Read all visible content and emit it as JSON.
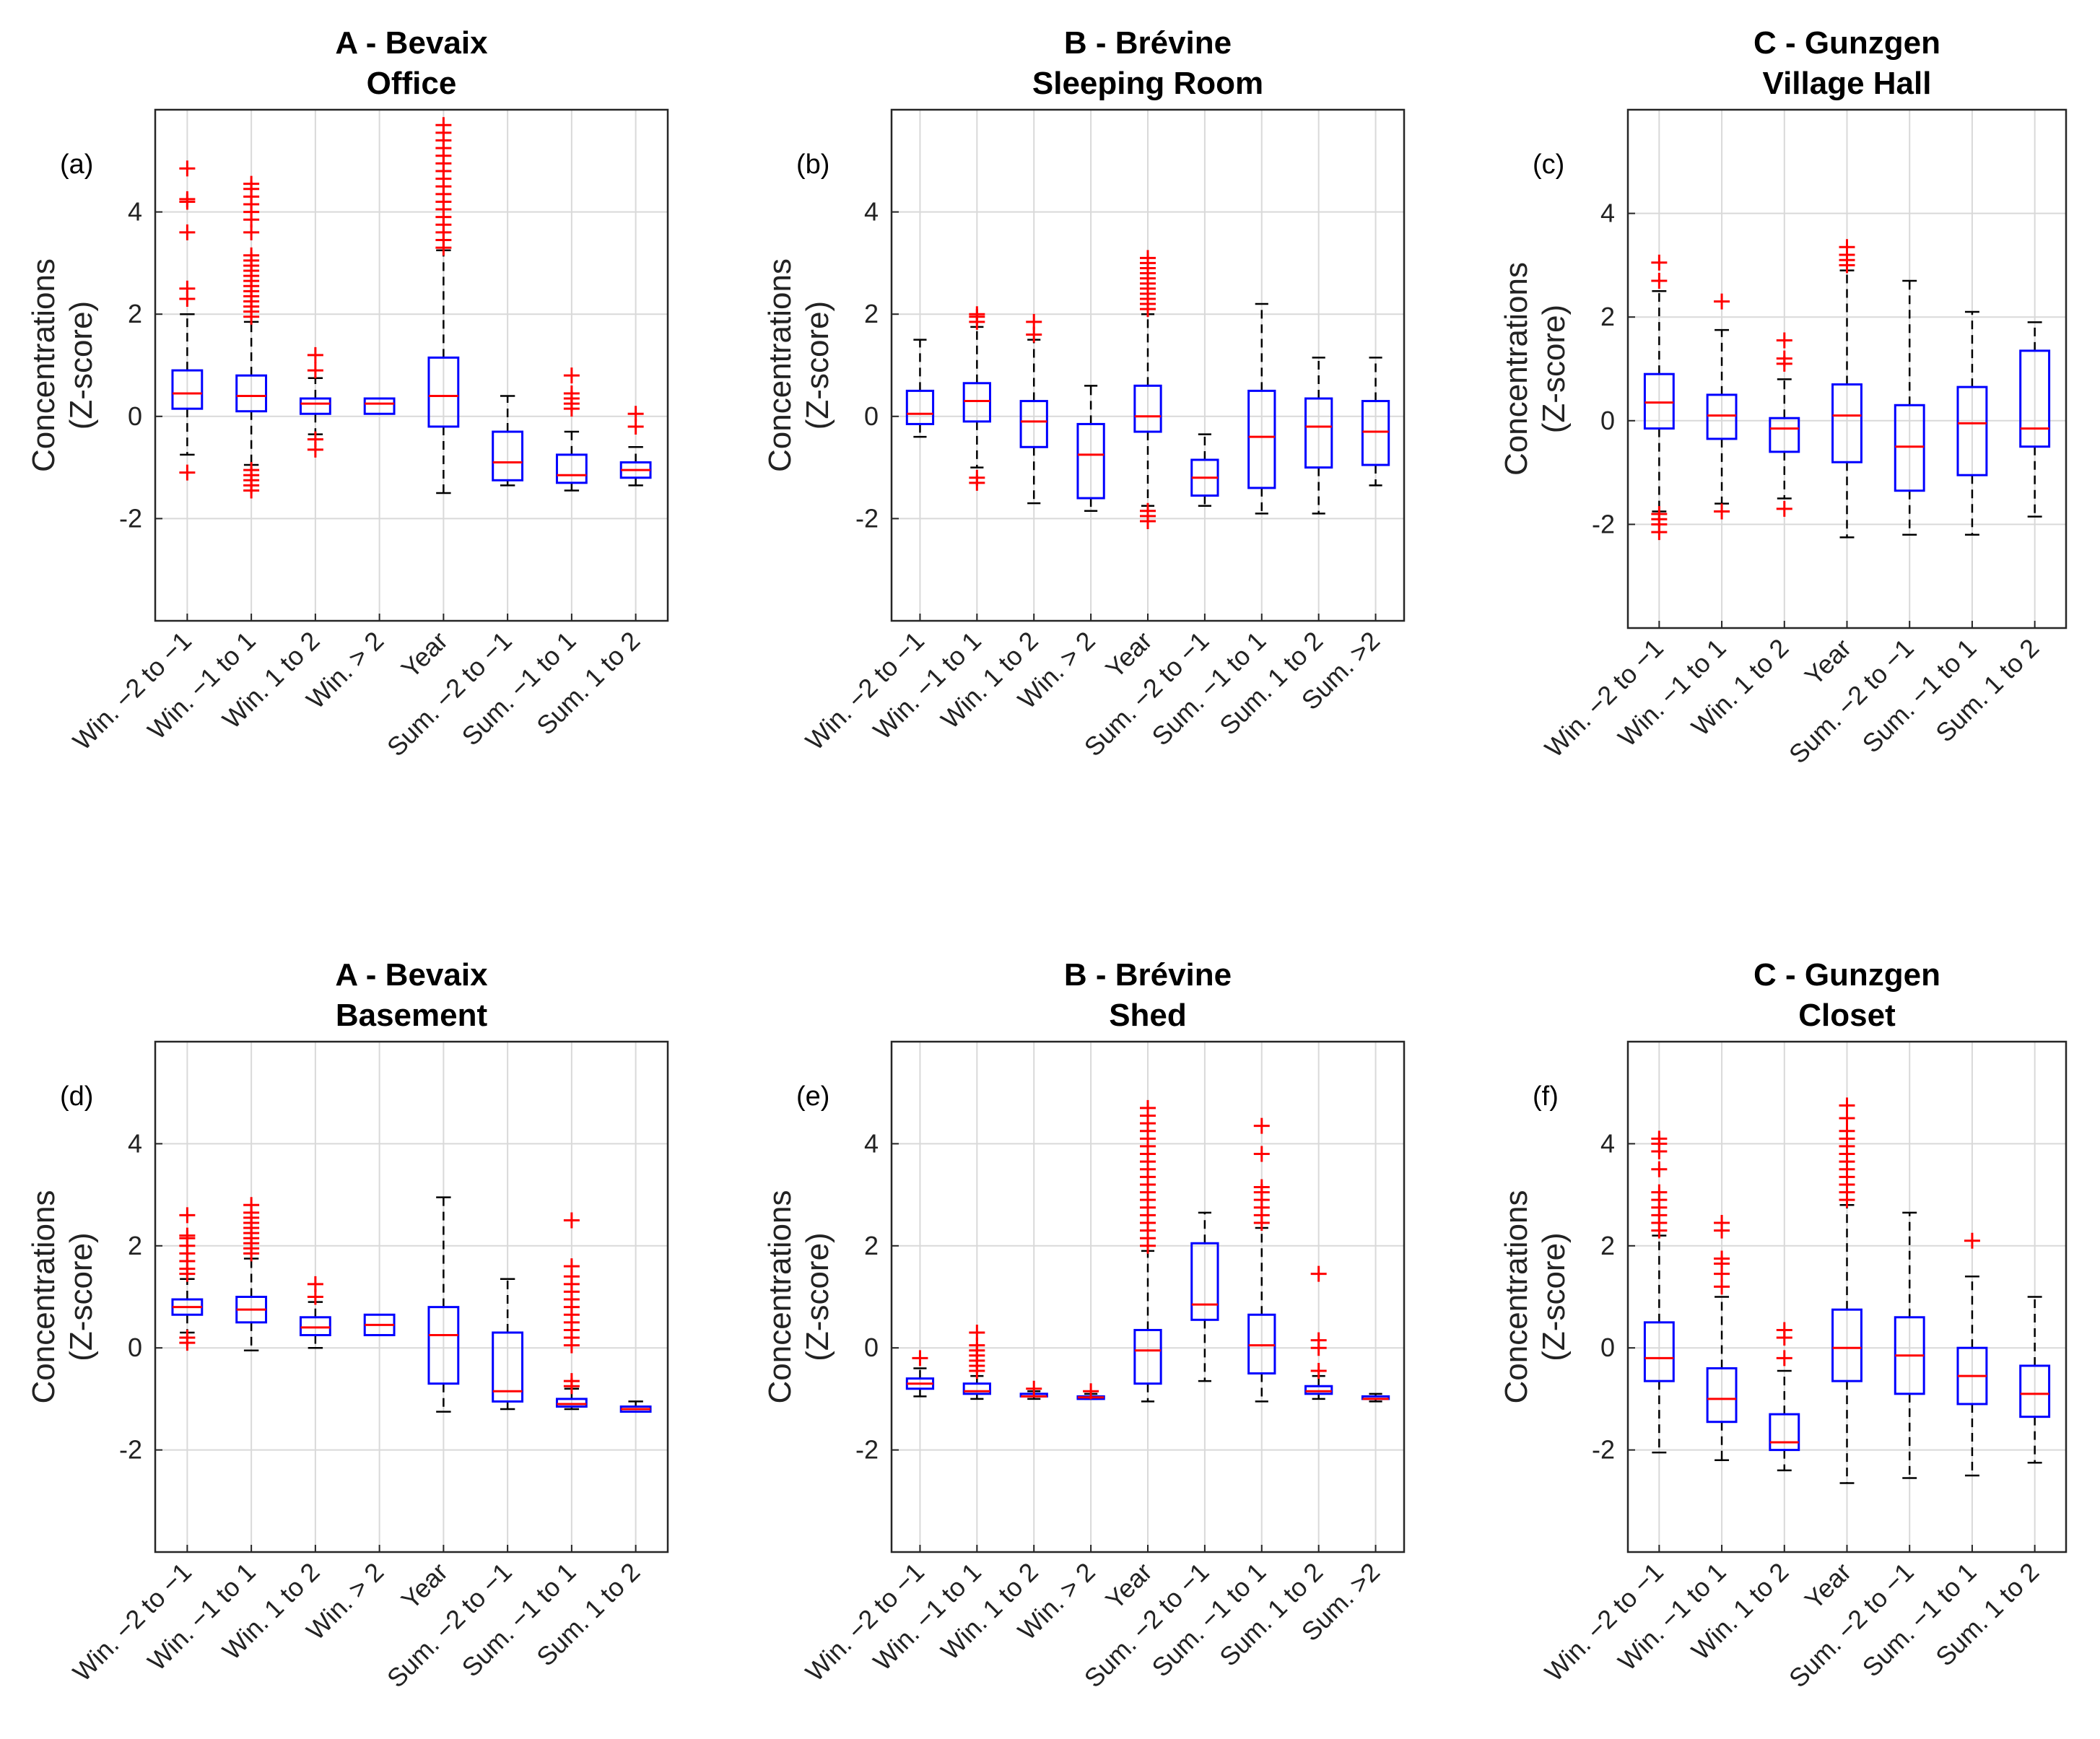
{
  "figure": {
    "style": "box plots of concentrations (Z-score) by class"
  },
  "colors": {
    "box": "#0000ff",
    "median": "#ff0000",
    "outlier": "#ff0000",
    "whisker": "#000000",
    "grid": "#d9d9d9",
    "axis": "#262626"
  },
  "chart_data": [
    {
      "type": "box",
      "panel": "(a)",
      "title": "A - Bevaix",
      "subtitle": "Office",
      "ylabel": "Concentrations",
      "ylabel2": "(Z-score)",
      "ylim": [
        -4,
        6
      ],
      "yticks": [
        -2,
        0,
        2,
        4
      ],
      "categories": [
        "Win. −2 to −1",
        "Win. −1 to 1",
        "Win. 1 to 2",
        "Win. > 2",
        "Year",
        "Sum. −2 to −1",
        "Sum. −1 to 1",
        "Sum. 1 to 2"
      ],
      "boxes": [
        {
          "wlo": -0.75,
          "q1": 0.15,
          "med": 0.45,
          "q3": 0.9,
          "whi": 2.0,
          "outliers": [
            -1.1,
            2.3,
            2.5,
            3.6,
            4.2,
            4.25,
            4.85
          ]
        },
        {
          "wlo": -0.95,
          "q1": 0.1,
          "med": 0.4,
          "q3": 0.8,
          "whi": 1.85,
          "outliers": [
            -1.45,
            -1.35,
            -1.25,
            -1.15,
            -1.05,
            1.95,
            2.05,
            2.15,
            2.25,
            2.35,
            2.45,
            2.55,
            2.65,
            2.75,
            2.85,
            2.95,
            3.05,
            3.15,
            3.6,
            3.85,
            4.0,
            4.15,
            4.3,
            4.45,
            4.55
          ]
        },
        {
          "wlo": -0.35,
          "q1": 0.05,
          "med": 0.25,
          "q3": 0.35,
          "whi": 0.75,
          "outliers": [
            -0.65,
            -0.45,
            0.9,
            1.2
          ]
        },
        {
          "wlo": 0.05,
          "q1": 0.05,
          "med": 0.25,
          "q3": 0.35,
          "whi": 0.35,
          "outliers": []
        },
        {
          "wlo": -1.5,
          "q1": -0.2,
          "med": 0.4,
          "q3": 1.15,
          "whi": 3.25,
          "outliers": [
            3.3,
            3.45,
            3.6,
            3.75,
            3.9,
            4.05,
            4.2,
            4.35,
            4.5,
            4.65,
            4.8,
            4.95,
            5.1,
            5.25,
            5.4,
            5.55,
            5.7
          ]
        },
        {
          "wlo": -1.35,
          "q1": -1.25,
          "med": -0.9,
          "q3": -0.3,
          "whi": 0.4,
          "outliers": []
        },
        {
          "wlo": -1.45,
          "q1": -1.3,
          "med": -1.15,
          "q3": -0.75,
          "whi": -0.3,
          "outliers": [
            0.15,
            0.25,
            0.35,
            0.45,
            0.8
          ]
        },
        {
          "wlo": -1.35,
          "q1": -1.2,
          "med": -1.05,
          "q3": -0.9,
          "whi": -0.6,
          "outliers": [
            -0.2,
            0.05
          ]
        }
      ]
    },
    {
      "type": "box",
      "panel": "(b)",
      "title": "B - Brévine",
      "subtitle": "Sleeping Room",
      "ylabel": "Concentrations",
      "ylabel2": "(Z-score)",
      "ylim": [
        -4,
        6
      ],
      "yticks": [
        -2,
        0,
        2,
        4
      ],
      "categories": [
        "Win. −2 to −1",
        "Win. −1 to 1",
        "Win. 1 to 2",
        "Win. > 2",
        "Year",
        "Sum. −2 to −1",
        "Sum. −1 to 1",
        "Sum. 1 to 2",
        "Sum. >2"
      ],
      "boxes": [
        {
          "wlo": -0.4,
          "q1": -0.15,
          "med": 0.05,
          "q3": 0.5,
          "whi": 1.5,
          "outliers": []
        },
        {
          "wlo": -1.0,
          "q1": -0.1,
          "med": 0.3,
          "q3": 0.65,
          "whi": 1.75,
          "outliers": [
            -1.3,
            -1.2,
            1.85,
            1.95,
            2.0
          ]
        },
        {
          "wlo": -1.7,
          "q1": -0.6,
          "med": -0.1,
          "q3": 0.3,
          "whi": 1.5,
          "outliers": [
            1.6,
            1.85
          ]
        },
        {
          "wlo": -1.85,
          "q1": -1.6,
          "med": -0.75,
          "q3": -0.15,
          "whi": 0.6,
          "outliers": []
        },
        {
          "wlo": -1.75,
          "q1": -0.3,
          "med": 0.0,
          "q3": 0.6,
          "whi": 2.0,
          "outliers": [
            -2.05,
            -1.95,
            -1.85,
            2.1,
            2.2,
            2.3,
            2.4,
            2.5,
            2.6,
            2.7,
            2.8,
            2.9,
            3.0,
            3.1
          ]
        },
        {
          "wlo": -1.75,
          "q1": -1.55,
          "med": -1.2,
          "q3": -0.85,
          "whi": -0.35,
          "outliers": []
        },
        {
          "wlo": -1.9,
          "q1": -1.4,
          "med": -0.4,
          "q3": 0.5,
          "whi": 2.2,
          "outliers": []
        },
        {
          "wlo": -1.9,
          "q1": -1.0,
          "med": -0.2,
          "q3": 0.35,
          "whi": 1.15,
          "outliers": []
        },
        {
          "wlo": -1.35,
          "q1": -0.95,
          "med": -0.3,
          "q3": 0.3,
          "whi": 1.15,
          "outliers": []
        }
      ]
    },
    {
      "type": "box",
      "panel": "(c)",
      "title": "C - Gunzgen",
      "subtitle": "Village Hall",
      "ylabel": "Concentrations",
      "ylabel2": "(Z-score)",
      "ylim": [
        -4,
        6
      ],
      "yticks": [
        -2,
        0,
        2,
        4
      ],
      "categories": [
        "Win. −2 to −1",
        "Win. −1 to 1",
        "Win. 1 to 2",
        "Year",
        "Sum. −2 to −1",
        "Sum. −1 to 1",
        "Sum. 1 to 2"
      ],
      "boxes": [
        {
          "wlo": -1.75,
          "q1": -0.15,
          "med": 0.35,
          "q3": 0.9,
          "whi": 2.5,
          "outliers": [
            -2.15,
            -2.0,
            -1.9,
            -1.8,
            2.7,
            3.05
          ]
        },
        {
          "wlo": -1.6,
          "q1": -0.35,
          "med": 0.1,
          "q3": 0.5,
          "whi": 1.75,
          "outliers": [
            -1.75,
            2.3
          ]
        },
        {
          "wlo": -1.5,
          "q1": -0.6,
          "med": -0.15,
          "q3": 0.05,
          "whi": 0.8,
          "outliers": [
            -1.7,
            1.1,
            1.2,
            1.55
          ]
        },
        {
          "wlo": -2.25,
          "q1": -0.8,
          "med": 0.1,
          "q3": 0.7,
          "whi": 2.9,
          "outliers": [
            3.0,
            3.1,
            3.2,
            3.35
          ]
        },
        {
          "wlo": -2.2,
          "q1": -1.35,
          "med": -0.5,
          "q3": 0.3,
          "whi": 2.7,
          "outliers": []
        },
        {
          "wlo": -2.2,
          "q1": -1.05,
          "med": -0.05,
          "q3": 0.65,
          "whi": 2.1,
          "outliers": []
        },
        {
          "wlo": -1.85,
          "q1": -0.5,
          "med": -0.15,
          "q3": 1.35,
          "whi": 1.9,
          "outliers": []
        }
      ]
    },
    {
      "type": "box",
      "panel": "(d)",
      "title": "A - Bevaix",
      "subtitle": "Basement",
      "ylabel": "Concentrations",
      "ylabel2": "(Z-score)",
      "ylim": [
        -4,
        6
      ],
      "yticks": [
        -2,
        0,
        2,
        4
      ],
      "categories": [
        "Win. −2 to −1",
        "Win. −1 to 1",
        "Win. 1 to 2",
        "Win. > 2",
        "Year",
        "Sum. −2 to −1",
        "Sum. −1 to 1",
        "Sum. 1 to 2"
      ],
      "boxes": [
        {
          "wlo": 0.3,
          "q1": 0.65,
          "med": 0.8,
          "q3": 0.95,
          "whi": 1.35,
          "outliers": [
            0.1,
            0.2,
            1.45,
            1.55,
            1.7,
            1.85,
            2.0,
            2.15,
            2.2,
            2.6
          ]
        },
        {
          "wlo": -0.05,
          "q1": 0.5,
          "med": 0.75,
          "q3": 1.0,
          "whi": 1.75,
          "outliers": [
            1.85,
            1.95,
            2.05,
            2.15,
            2.25,
            2.35,
            2.45,
            2.55,
            2.65,
            2.8
          ]
        },
        {
          "wlo": 0.0,
          "q1": 0.25,
          "med": 0.4,
          "q3": 0.6,
          "whi": 0.9,
          "outliers": [
            1.0,
            1.25
          ]
        },
        {
          "wlo": 0.25,
          "q1": 0.25,
          "med": 0.45,
          "q3": 0.65,
          "whi": 0.65,
          "outliers": []
        },
        {
          "wlo": -1.25,
          "q1": -0.7,
          "med": 0.25,
          "q3": 0.8,
          "whi": 2.95,
          "outliers": []
        },
        {
          "wlo": -1.2,
          "q1": -1.05,
          "med": -0.85,
          "q3": 0.3,
          "whi": 1.35,
          "outliers": []
        },
        {
          "wlo": -1.2,
          "q1": -1.15,
          "med": -1.1,
          "q3": -1.0,
          "whi": -0.8,
          "outliers": [
            -0.75,
            -0.65,
            0.05,
            0.2,
            0.35,
            0.5,
            0.65,
            0.8,
            0.95,
            1.1,
            1.25,
            1.4,
            1.6,
            2.5
          ]
        },
        {
          "wlo": -1.25,
          "q1": -1.25,
          "med": -1.2,
          "q3": -1.15,
          "whi": -1.05,
          "outliers": []
        }
      ]
    },
    {
      "type": "box",
      "panel": "(e)",
      "title": "B - Brévine",
      "subtitle": "Shed",
      "ylabel": "Concentrations",
      "ylabel2": "(Z-score)",
      "ylim": [
        -4,
        6
      ],
      "yticks": [
        -2,
        0,
        2,
        4
      ],
      "categories": [
        "Win. −2 to −1",
        "Win. −1 to 1",
        "Win. 1 to 2",
        "Win. > 2",
        "Year",
        "Sum. −2 to −1",
        "Sum. −1 to 1",
        "Sum. 1 to 2",
        "Sum. >2"
      ],
      "boxes": [
        {
          "wlo": -0.95,
          "q1": -0.8,
          "med": -0.7,
          "q3": -0.6,
          "whi": -0.4,
          "outliers": [
            -0.2
          ]
        },
        {
          "wlo": -1.0,
          "q1": -0.9,
          "med": -0.85,
          "q3": -0.7,
          "whi": -0.55,
          "outliers": [
            -0.45,
            -0.35,
            -0.25,
            -0.15,
            -0.05,
            0.05,
            0.3
          ]
        },
        {
          "wlo": -1.0,
          "q1": -0.95,
          "med": -0.95,
          "q3": -0.9,
          "whi": -0.85,
          "outliers": [
            -0.8
          ]
        },
        {
          "wlo": -1.0,
          "q1": -1.0,
          "med": -0.97,
          "q3": -0.95,
          "whi": -0.9,
          "outliers": [
            -0.85
          ]
        },
        {
          "wlo": -1.05,
          "q1": -0.7,
          "med": -0.05,
          "q3": 0.35,
          "whi": 1.9,
          "outliers": [
            2.0,
            2.15,
            2.3,
            2.45,
            2.6,
            2.75,
            2.9,
            3.05,
            3.2,
            3.35,
            3.5,
            3.65,
            3.8,
            3.95,
            4.1,
            4.25,
            4.4,
            4.55,
            4.7
          ]
        },
        {
          "wlo": -0.65,
          "q1": 0.55,
          "med": 0.85,
          "q3": 2.05,
          "whi": 2.65,
          "outliers": []
        },
        {
          "wlo": -1.05,
          "q1": -0.5,
          "med": 0.05,
          "q3": 0.65,
          "whi": 2.35,
          "outliers": [
            2.45,
            2.6,
            2.75,
            2.9,
            3.05,
            3.15,
            3.8,
            4.35
          ]
        },
        {
          "wlo": -1.0,
          "q1": -0.9,
          "med": -0.85,
          "q3": -0.75,
          "whi": -0.55,
          "outliers": [
            -0.45,
            0.0,
            0.15,
            1.45
          ]
        },
        {
          "wlo": -1.05,
          "q1": -1.0,
          "med": -1.0,
          "q3": -0.95,
          "whi": -0.9,
          "outliers": []
        }
      ]
    },
    {
      "type": "box",
      "panel": "(f)",
      "title": "C - Gunzgen",
      "subtitle": "Closet",
      "ylabel": "Concentrations",
      "ylabel2": "(Z-score)",
      "ylim": [
        -4,
        6
      ],
      "yticks": [
        -2,
        0,
        2,
        4
      ],
      "categories": [
        "Win. −2 to −1",
        "Win. −1 to 1",
        "Win. 1 to 2",
        "Year",
        "Sum. −2 to −1",
        "Sum. −1 to 1",
        "Sum. 1 to 2"
      ],
      "boxes": [
        {
          "wlo": -2.05,
          "q1": -0.65,
          "med": -0.2,
          "q3": 0.5,
          "whi": 2.2,
          "outliers": [
            2.3,
            2.45,
            2.6,
            2.75,
            2.9,
            3.05,
            3.5,
            3.85,
            4.0,
            4.1
          ]
        },
        {
          "wlo": -2.2,
          "q1": -1.45,
          "med": -1.0,
          "q3": -0.4,
          "whi": 1.0,
          "outliers": [
            1.2,
            1.45,
            1.65,
            1.75,
            2.3,
            2.45
          ]
        },
        {
          "wlo": -2.4,
          "q1": -2.0,
          "med": -1.85,
          "q3": -1.3,
          "whi": -0.45,
          "outliers": [
            -0.2,
            0.2,
            0.35
          ]
        },
        {
          "wlo": -2.65,
          "q1": -0.65,
          "med": 0.0,
          "q3": 0.75,
          "whi": 2.8,
          "outliers": [
            2.9,
            3.05,
            3.2,
            3.35,
            3.5,
            3.65,
            3.8,
            3.95,
            4.1,
            4.25,
            4.5,
            4.75
          ]
        },
        {
          "wlo": -2.55,
          "q1": -0.9,
          "med": -0.15,
          "q3": 0.6,
          "whi": 2.65,
          "outliers": []
        },
        {
          "wlo": -2.5,
          "q1": -1.1,
          "med": -0.55,
          "q3": 0.0,
          "whi": 1.4,
          "outliers": [
            2.1
          ]
        },
        {
          "wlo": -2.25,
          "q1": -1.35,
          "med": -0.9,
          "q3": -0.35,
          "whi": 1.0,
          "outliers": []
        }
      ]
    }
  ]
}
